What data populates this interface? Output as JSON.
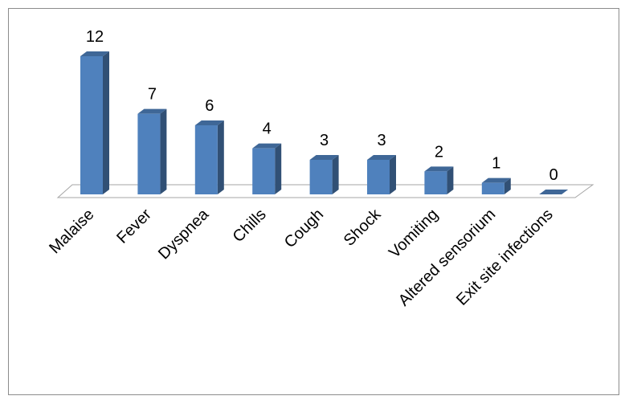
{
  "chart_data": {
    "type": "bar3d",
    "categories": [
      "Malaise",
      "Fever",
      "Dyspnea",
      "Chills",
      "Cough",
      "Shock",
      "Vomiting",
      "Altered sensorium",
      "Exit site infections"
    ],
    "values": [
      12,
      7,
      6,
      4,
      3,
      3,
      2,
      1,
      0
    ],
    "color": "#4f81bd"
  }
}
